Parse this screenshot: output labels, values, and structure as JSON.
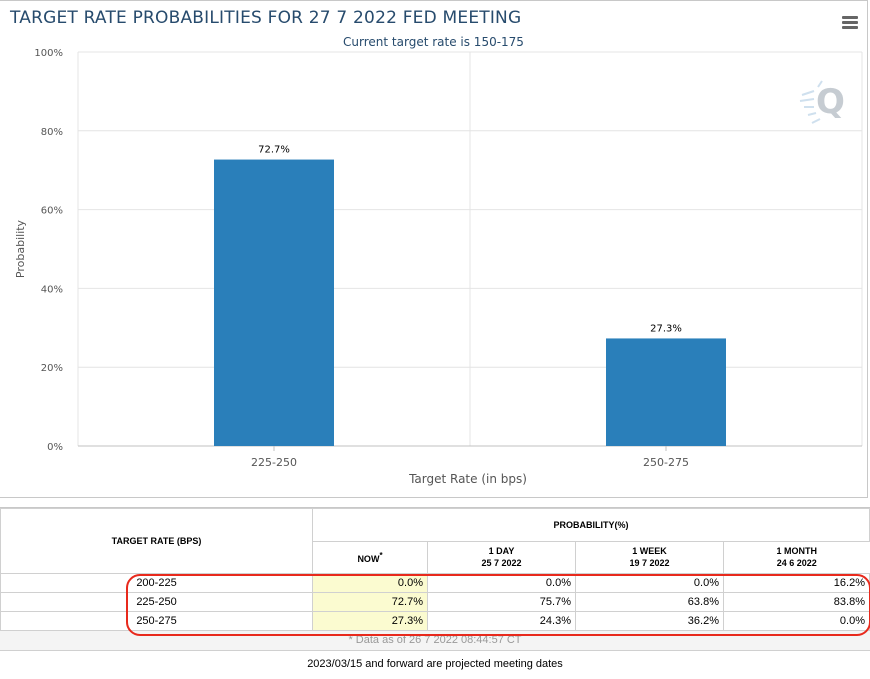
{
  "title": "TARGET RATE PROBABILITIES FOR 27 7 2022 FED MEETING",
  "subtitle": "Current target rate is 150-175",
  "menu_icon": "hamburger-menu-icon",
  "logo_icon": "q-logo-icon",
  "colors": {
    "bar": "#2a7fba",
    "title": "#274b6d",
    "highlight": "#e8291c",
    "now_cell": "#fbfbd0"
  },
  "chart_data": {
    "type": "bar",
    "title": "TARGET RATE PROBABILITIES FOR 27 7 2022 FED MEETING",
    "subtitle": "Current target rate is 150-175",
    "categories": [
      "225-250",
      "250-275"
    ],
    "values": [
      72.7,
      27.3
    ],
    "data_labels": [
      "72.7%",
      "27.3%"
    ],
    "xlabel": "Target Rate (in bps)",
    "ylabel": "Probability",
    "ylim": [
      0,
      100
    ],
    "yticks": [
      "0%",
      "20%",
      "40%",
      "60%",
      "80%",
      "100%"
    ],
    "grid": true,
    "legend": false
  },
  "table": {
    "rate_header": "TARGET RATE (BPS)",
    "prob_header": "PROBABILITY(%)",
    "columns": [
      {
        "line1": "NOW",
        "line2": ""
      },
      {
        "line1": "1 DAY",
        "line2": "25 7 2022"
      },
      {
        "line1": "1 WEEK",
        "line2": "19 7 2022"
      },
      {
        "line1": "1 MONTH",
        "line2": "24 6 2022"
      }
    ],
    "rows": [
      {
        "rate": "200-225",
        "now": "0.0%",
        "day": "0.0%",
        "week": "0.0%",
        "month": "16.2%"
      },
      {
        "rate": "225-250",
        "now": "72.7%",
        "day": "75.7%",
        "week": "63.8%",
        "month": "83.8%"
      },
      {
        "rate": "250-275",
        "now": "27.3%",
        "day": "24.3%",
        "week": "36.2%",
        "month": "0.0%"
      }
    ],
    "footnote": "* Data as of 26 7 2022 08:44:57 CT"
  },
  "projected_note": "2023/03/15 and forward are projected meeting dates"
}
